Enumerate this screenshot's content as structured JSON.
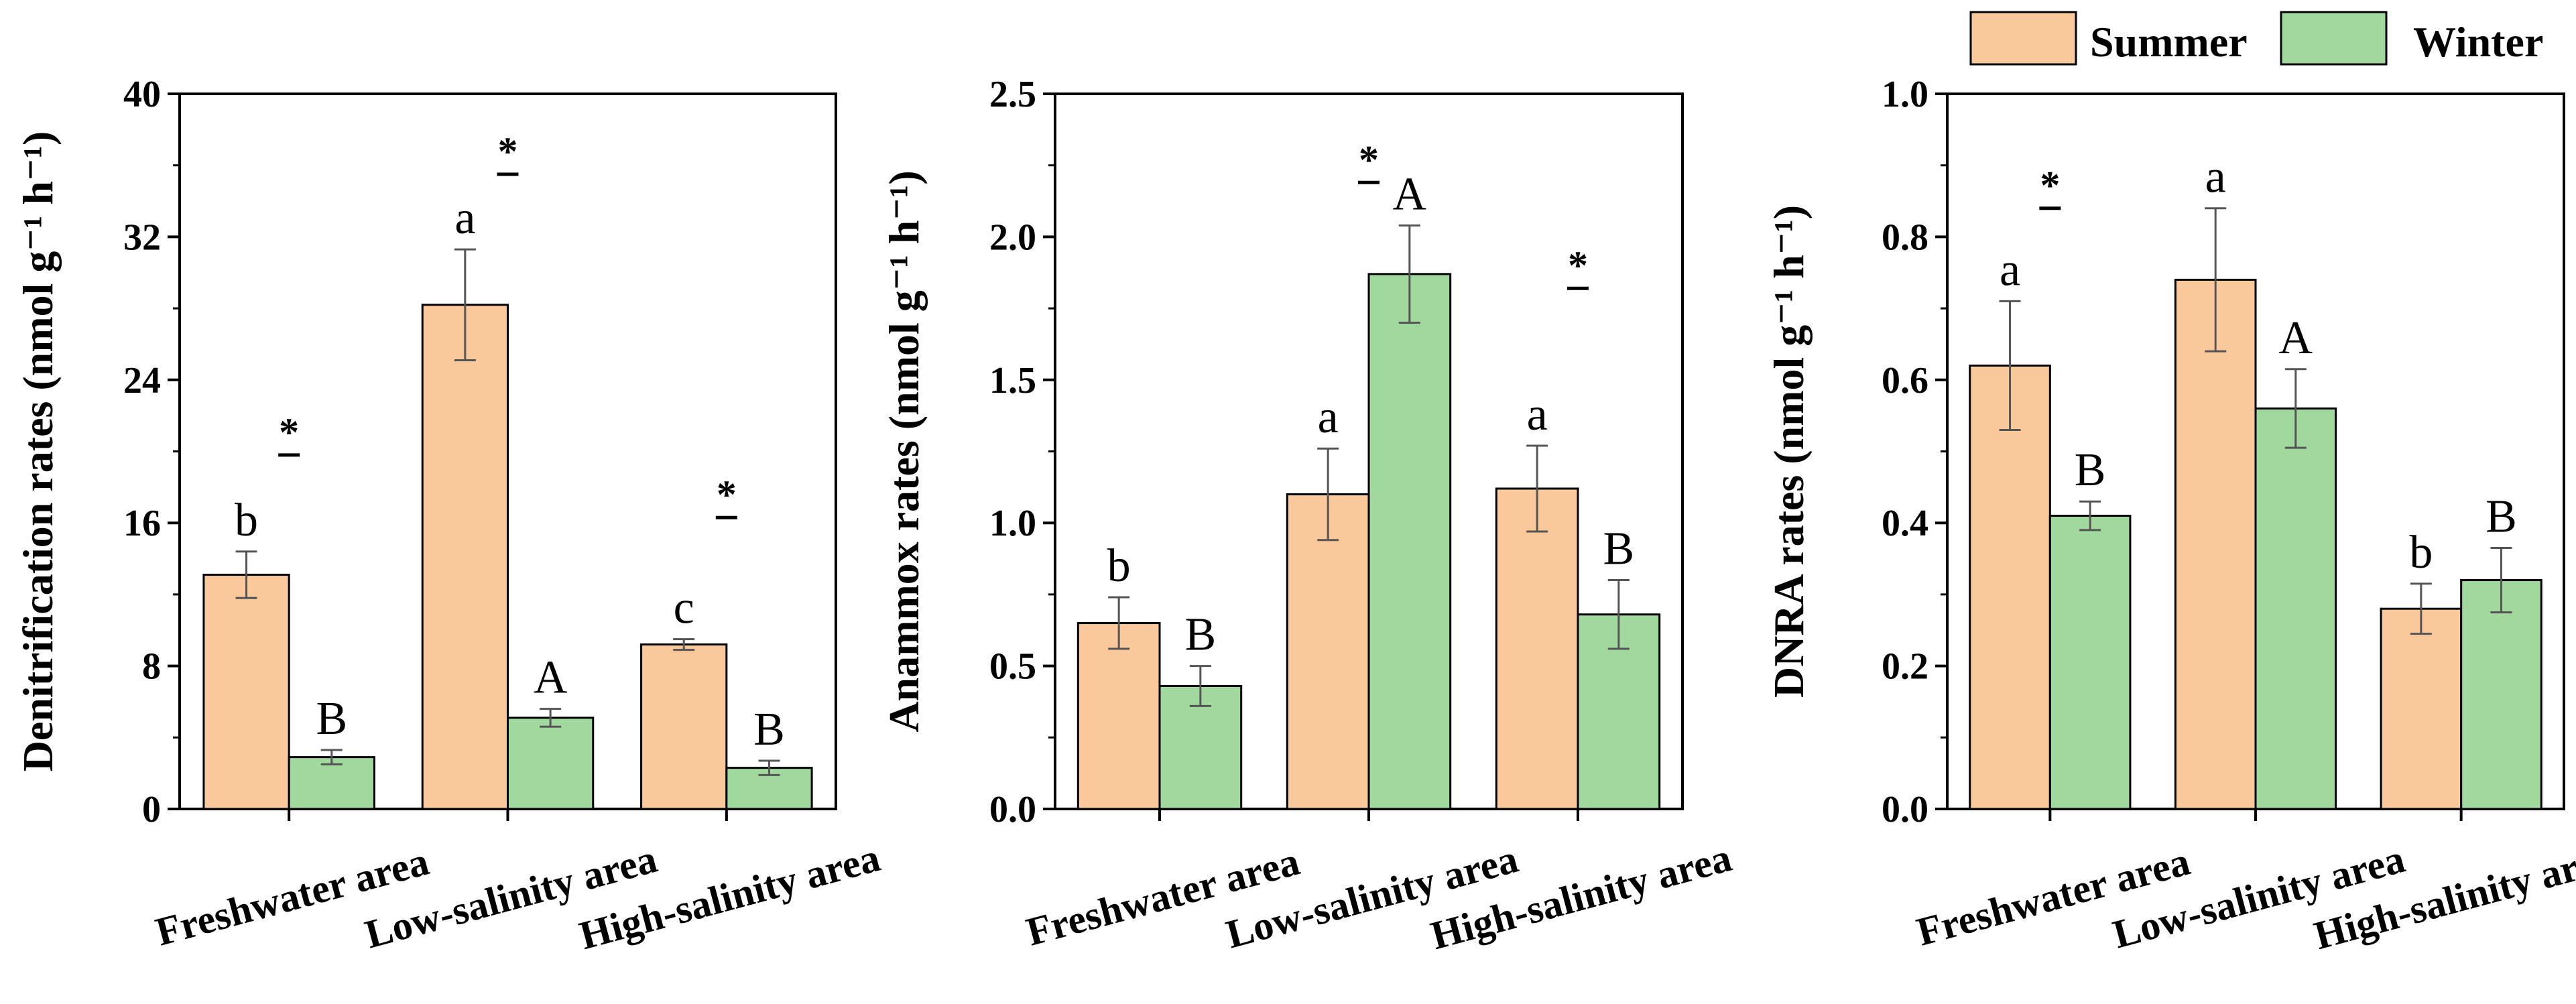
{
  "legend": {
    "entries": [
      {
        "label": "Summer",
        "color": "#f9c89b"
      },
      {
        "label": "Winter",
        "color": "#a0d89e"
      }
    ]
  },
  "colors": {
    "summer": "#f9c89b",
    "winter": "#a0d89e",
    "axis": "#000000",
    "error": "#555555"
  },
  "chart_data": [
    {
      "type": "bar",
      "ylabel": "Denitrification rates (nmol g⁻¹ h⁻¹)",
      "ylim": [
        0,
        40
      ],
      "yticks": [
        "0",
        "8",
        "16",
        "24",
        "32",
        "40"
      ],
      "categories": [
        "Freshwater area",
        "Low-salinity area",
        "High-salinity area"
      ],
      "series": [
        {
          "name": "Summer",
          "values": [
            13.1,
            28.2,
            9.2
          ],
          "errors": [
            1.3,
            3.1,
            0.3
          ],
          "letters": [
            "b",
            "a",
            "c"
          ]
        },
        {
          "name": "Winter",
          "values": [
            2.9,
            5.1,
            2.3
          ],
          "errors": [
            0.4,
            0.5,
            0.4
          ],
          "letters": [
            "B",
            "A",
            "B"
          ]
        }
      ],
      "significance": [
        {
          "category": 0,
          "mark": "*",
          "at": 19.8
        },
        {
          "category": 1,
          "mark": "*",
          "at": 35.5
        },
        {
          "category": 2,
          "mark": "*",
          "at": 16.3
        }
      ]
    },
    {
      "type": "bar",
      "ylabel": "Anammox rates (nmol g⁻¹ h⁻¹)",
      "ylim": [
        0,
        2.5
      ],
      "yticks": [
        "0.0",
        "0.5",
        "1.0",
        "1.5",
        "2.0",
        "2.5"
      ],
      "categories": [
        "Freshwater area",
        "Low-salinity area",
        "High-salinity area"
      ],
      "series": [
        {
          "name": "Summer",
          "values": [
            0.65,
            1.1,
            1.12
          ],
          "errors": [
            0.09,
            0.16,
            0.15
          ],
          "letters": [
            "b",
            "a",
            "a"
          ]
        },
        {
          "name": "Winter",
          "values": [
            0.43,
            1.87,
            0.68
          ],
          "errors": [
            0.07,
            0.17,
            0.12
          ],
          "letters": [
            "B",
            "A",
            "B"
          ]
        }
      ],
      "significance": [
        {
          "category": 1,
          "mark": "*",
          "at": 2.19
        },
        {
          "category": 2,
          "mark": "*",
          "at": 1.82
        }
      ]
    },
    {
      "type": "bar",
      "ylabel": "DNRA rates (nmol g⁻¹ h⁻¹)",
      "ylim": [
        0,
        1.0
      ],
      "yticks": [
        "0.0",
        "0.2",
        "0.4",
        "0.6",
        "0.8",
        "1.0"
      ],
      "categories": [
        "Freshwater area",
        "Low-salinity area",
        "High-salinity area"
      ],
      "series": [
        {
          "name": "Summer",
          "values": [
            0.62,
            0.74,
            0.28
          ],
          "errors": [
            0.09,
            0.1,
            0.035
          ],
          "letters": [
            "a",
            "a",
            "b"
          ]
        },
        {
          "name": "Winter",
          "values": [
            0.41,
            0.56,
            0.32
          ],
          "errors": [
            0.02,
            0.055,
            0.045
          ],
          "letters": [
            "B",
            "A",
            "B"
          ]
        }
      ],
      "significance": [
        {
          "category": 0,
          "mark": "*",
          "at": 0.84
        }
      ]
    }
  ]
}
